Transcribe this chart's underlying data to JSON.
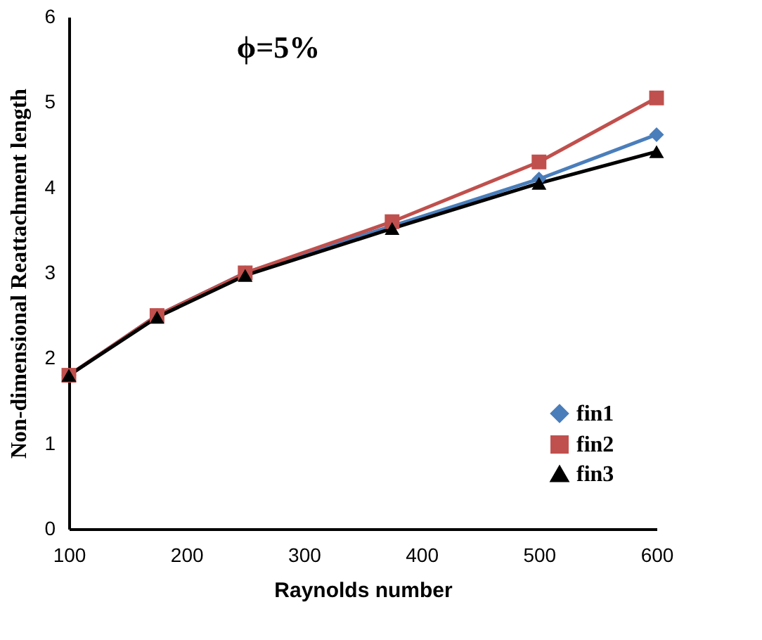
{
  "chart_data": {
    "type": "line",
    "title": "ϕ=5%",
    "xlabel": "Raynolds number",
    "ylabel": "Non-dimensional Reattachment length",
    "x": [
      100,
      175,
      250,
      375,
      500,
      600
    ],
    "series": [
      {
        "name": "fin1",
        "color": "#4a7ebb",
        "marker": "diamond",
        "values": [
          1.8,
          2.5,
          3.0,
          3.55,
          4.1,
          4.62
        ]
      },
      {
        "name": "fin2",
        "color": "#c0504d",
        "marker": "square",
        "values": [
          1.8,
          2.5,
          3.0,
          3.6,
          4.3,
          5.05
        ]
      },
      {
        "name": "fin3",
        "color": "#000000",
        "marker": "triangle",
        "values": [
          1.8,
          2.48,
          2.97,
          3.52,
          4.05,
          4.42
        ]
      }
    ],
    "xlim": [
      100,
      600
    ],
    "xticks": [
      100,
      200,
      300,
      400,
      500,
      600
    ],
    "ylim": [
      0,
      6
    ],
    "yticks": [
      0,
      1,
      2,
      3,
      4,
      5,
      6
    ],
    "grid": false,
    "legend": "bottom right",
    "line_style": "solid"
  }
}
